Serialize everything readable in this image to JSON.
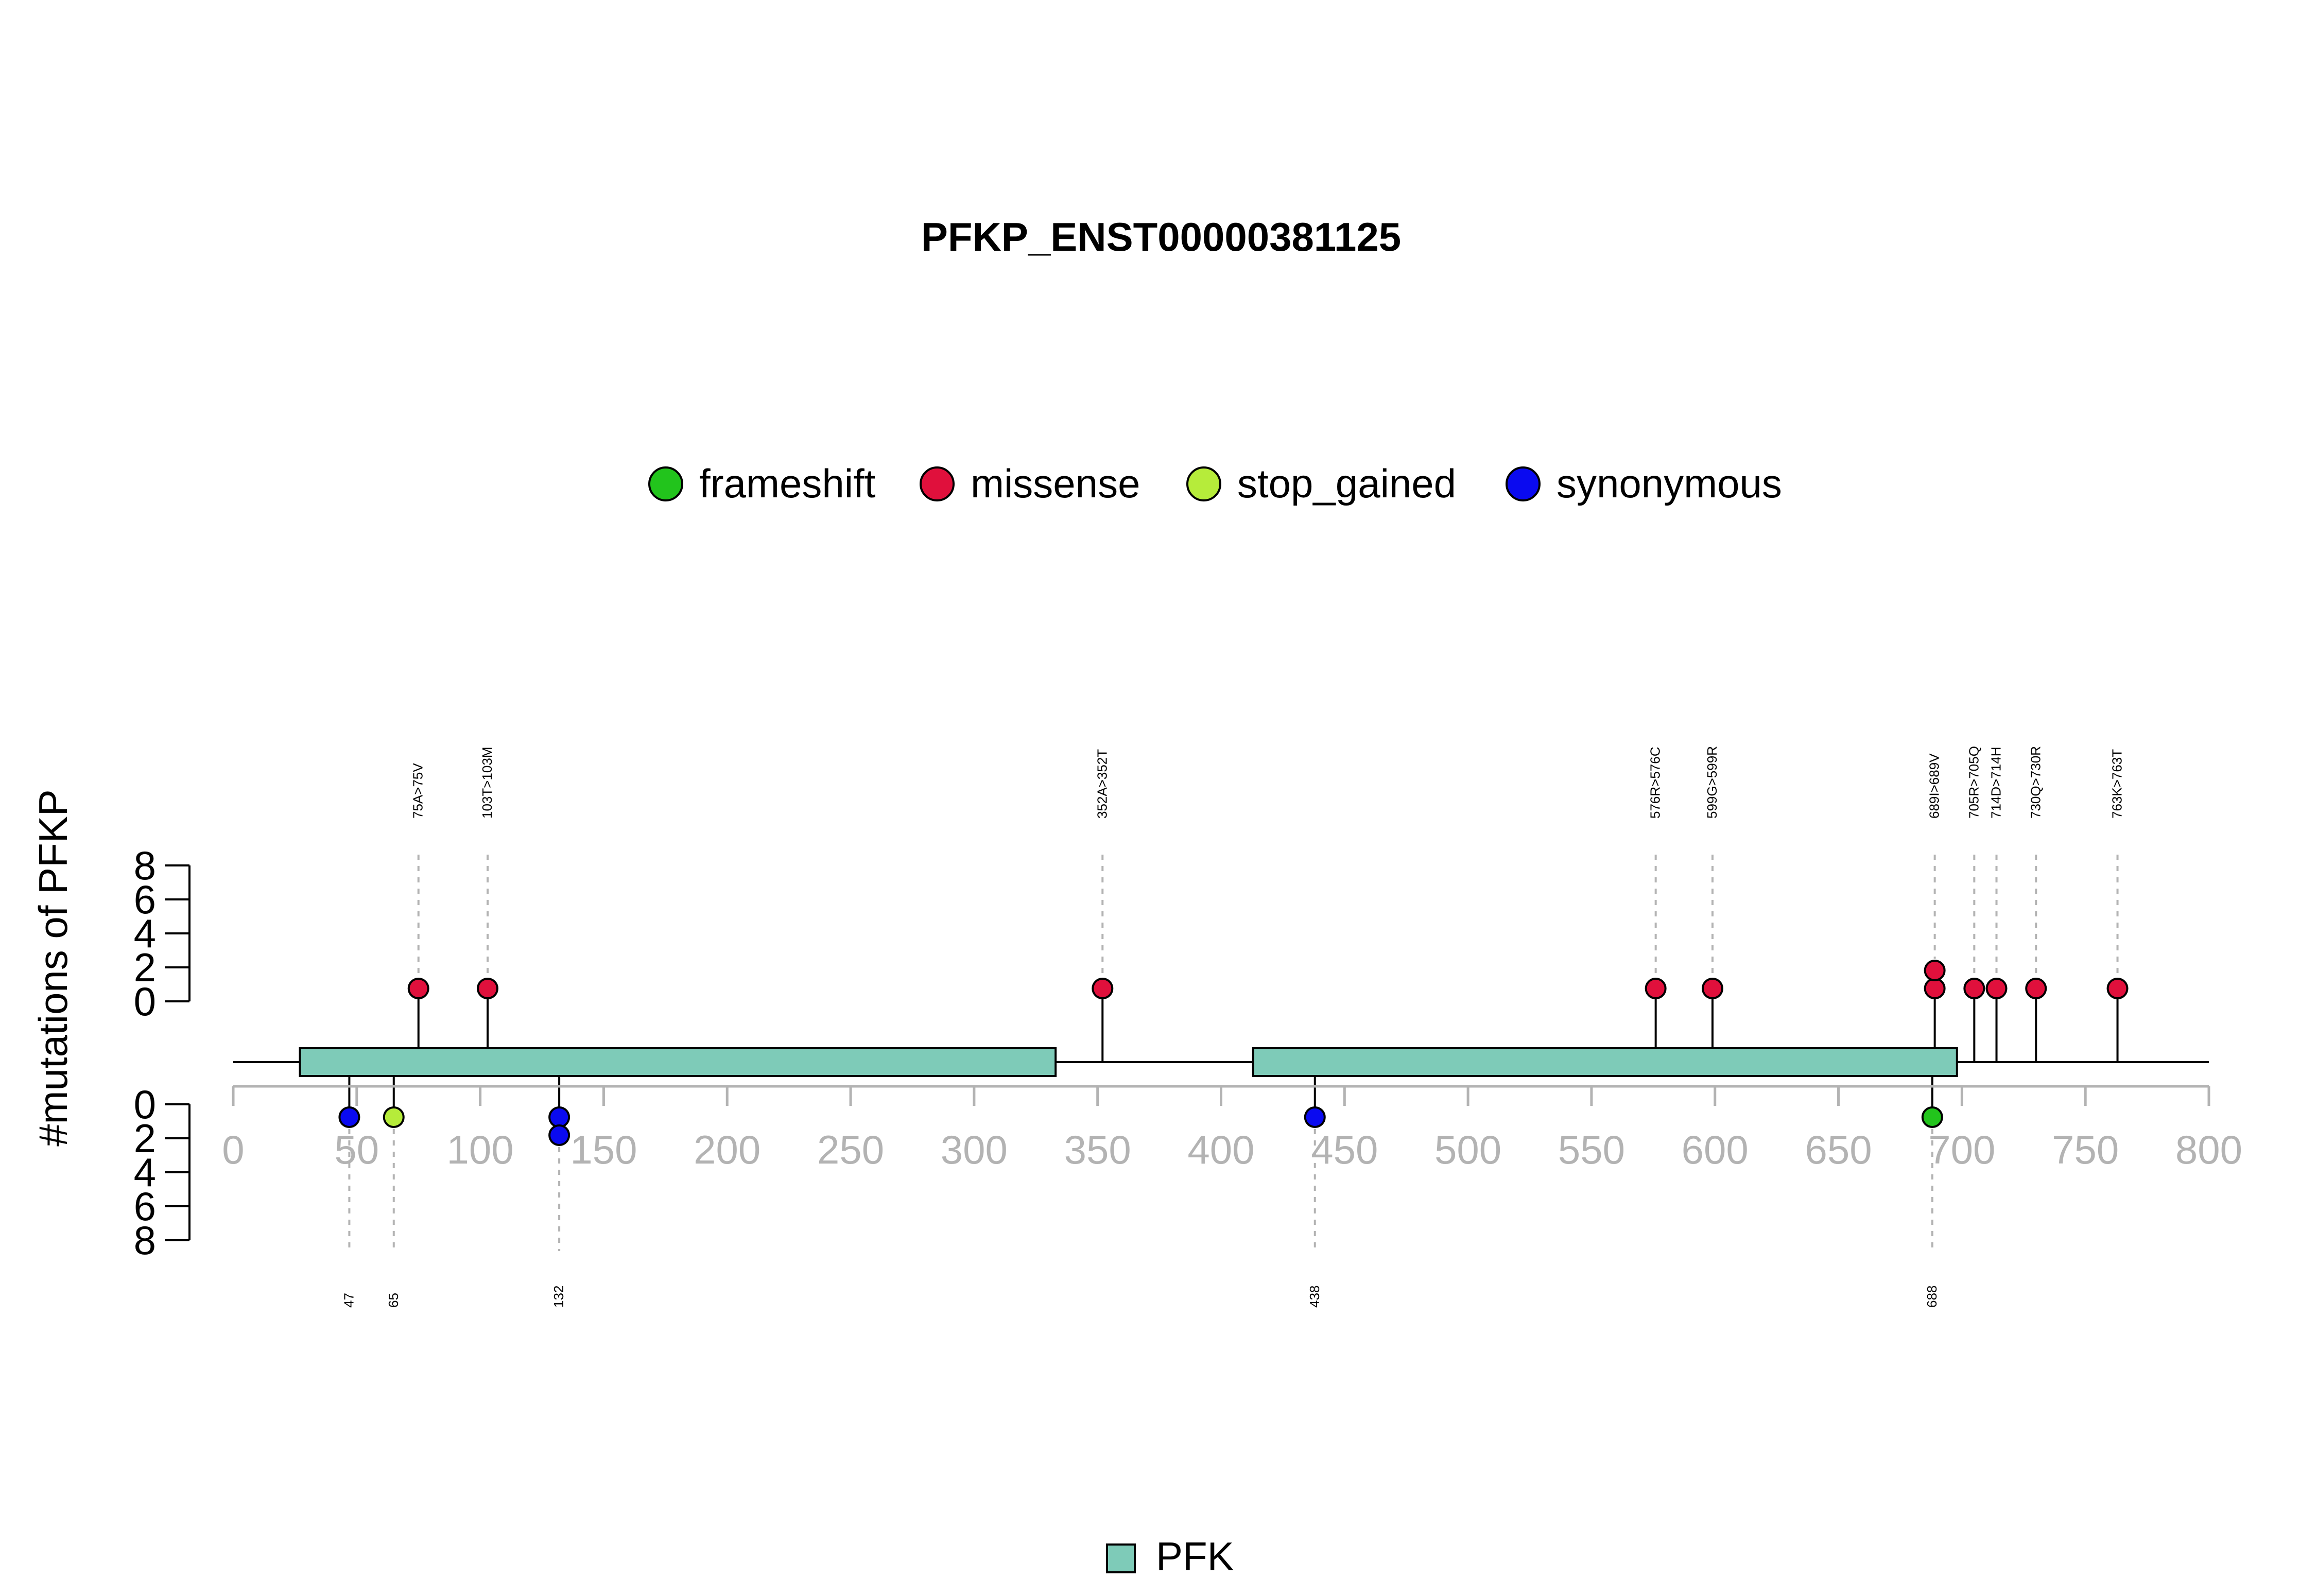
{
  "chart_data": {
    "type": "lollipop",
    "title": "PFKP_ENST00000381125",
    "ylabel": "#mutations of PFKP",
    "xlim": [
      0,
      800
    ],
    "xticks": [
      0,
      50,
      100,
      150,
      200,
      250,
      300,
      350,
      400,
      450,
      500,
      550,
      600,
      650,
      700,
      750,
      800
    ],
    "yticks_upper": [
      0,
      2,
      4,
      6,
      8
    ],
    "yticks_lower": [
      0,
      2,
      4,
      6,
      8
    ],
    "legend": [
      {
        "name": "frameshift",
        "color": "#22c41c"
      },
      {
        "name": "missense",
        "color": "#e0103c"
      },
      {
        "name": "stop_gained",
        "color": "#b6ec3a"
      },
      {
        "name": "synonymous",
        "color": "#0a0af0"
      }
    ],
    "domains": [
      {
        "name": "PFK",
        "start": 27,
        "end": 333
      },
      {
        "name": "PFK",
        "start": 413,
        "end": 698
      }
    ],
    "domain_legend": [
      {
        "name": "PFK",
        "color": "#7ecbb8"
      }
    ],
    "upper_mutations": [
      {
        "pos": 75,
        "label": "75A>75V",
        "count": 1,
        "type": "missense"
      },
      {
        "pos": 103,
        "label": "103T>103M",
        "count": 1,
        "type": "missense"
      },
      {
        "pos": 352,
        "label": "352A>352T",
        "count": 1,
        "type": "missense"
      },
      {
        "pos": 576,
        "label": "576R>576C",
        "count": 1,
        "type": "missense"
      },
      {
        "pos": 599,
        "label": "599G>599R",
        "count": 1,
        "type": "missense"
      },
      {
        "pos": 689,
        "label": "689I>689V",
        "count": 2,
        "type": "missense"
      },
      {
        "pos": 705,
        "label": "705R>705Q",
        "count": 1,
        "type": "missense"
      },
      {
        "pos": 714,
        "label": "714D>714H",
        "count": 1,
        "type": "missense"
      },
      {
        "pos": 730,
        "label": "730Q>730R",
        "count": 1,
        "type": "missense"
      },
      {
        "pos": 763,
        "label": "763K>763T",
        "count": 1,
        "type": "missense"
      }
    ],
    "lower_mutations": [
      {
        "pos": 47,
        "label": "47",
        "count": 1,
        "type": "synonymous"
      },
      {
        "pos": 65,
        "label": "65",
        "count": 1,
        "type": "stop_gained"
      },
      {
        "pos": 132,
        "label": "132",
        "count": 2,
        "type": "synonymous"
      },
      {
        "pos": 438,
        "label": "438",
        "count": 1,
        "type": "synonymous"
      },
      {
        "pos": 688,
        "label": "688",
        "count": 1,
        "type": "frameshift"
      }
    ]
  }
}
